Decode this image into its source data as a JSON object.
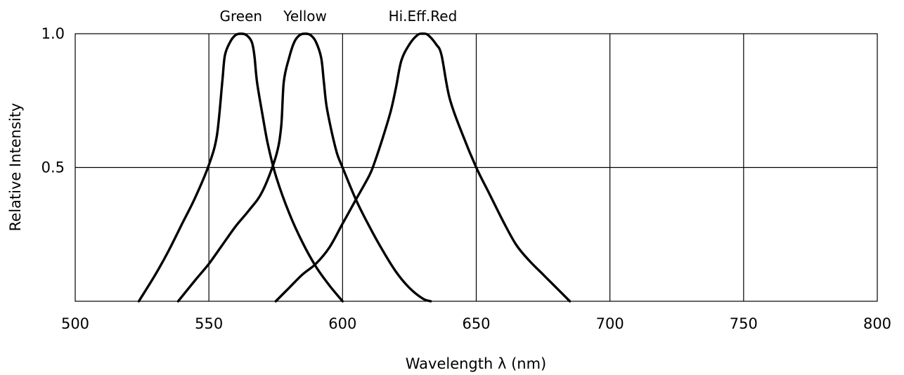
{
  "chart_data": {
    "type": "line",
    "title": "",
    "xlabel": "Wavelength λ (nm)",
    "ylabel": "Relative Intensity",
    "xlim": [
      500,
      800
    ],
    "ylim": [
      0,
      1.0
    ],
    "x_ticks": [
      "500",
      "550",
      "600",
      "650",
      "700",
      "750",
      "800"
    ],
    "y_ticks": [
      "0.5",
      "1.0"
    ],
    "grid": true,
    "legend": "labels above curve peaks",
    "series": [
      {
        "name": "Green",
        "x": [
          523.8,
          530,
          535,
          540,
          545,
          550,
          553,
          555,
          556,
          558,
          560,
          562,
          564,
          566,
          567,
          568,
          570,
          572,
          575,
          580,
          585,
          590,
          595,
          600
        ],
        "y": [
          0.0,
          0.1,
          0.19,
          0.29,
          0.39,
          0.51,
          0.62,
          0.82,
          0.92,
          0.97,
          0.995,
          1.0,
          0.995,
          0.97,
          0.92,
          0.82,
          0.7,
          0.59,
          0.47,
          0.33,
          0.22,
          0.13,
          0.06,
          0.0
        ]
      },
      {
        "name": "Yellow",
        "x": [
          538.5,
          545,
          550,
          555,
          560,
          565,
          570,
          575,
          577,
          578,
          580,
          582,
          584,
          586,
          588,
          590,
          592,
          593,
          594,
          596,
          598,
          600,
          605,
          610,
          615,
          620,
          625,
          630,
          633
        ],
        "y": [
          0.0,
          0.08,
          0.14,
          0.21,
          0.28,
          0.34,
          0.41,
          0.54,
          0.65,
          0.82,
          0.91,
          0.97,
          0.995,
          1.0,
          0.995,
          0.97,
          0.91,
          0.82,
          0.73,
          0.63,
          0.55,
          0.5,
          0.38,
          0.28,
          0.19,
          0.11,
          0.05,
          0.01,
          0.0
        ]
      },
      {
        "name": "Hi.Eff.Red",
        "x": [
          575,
          580,
          585,
          590,
          595,
          600,
          605,
          610,
          612,
          615,
          618,
          620,
          622,
          625,
          628,
          630,
          632,
          635,
          637,
          640,
          645,
          650,
          655,
          660,
          665,
          670,
          675,
          680,
          685
        ],
        "y": [
          0.0,
          0.05,
          0.1,
          0.14,
          0.2,
          0.29,
          0.38,
          0.47,
          0.52,
          0.61,
          0.71,
          0.8,
          0.9,
          0.96,
          0.995,
          1.0,
          0.995,
          0.96,
          0.92,
          0.76,
          0.62,
          0.5,
          0.4,
          0.3,
          0.21,
          0.15,
          0.1,
          0.05,
          0.0
        ]
      }
    ]
  }
}
